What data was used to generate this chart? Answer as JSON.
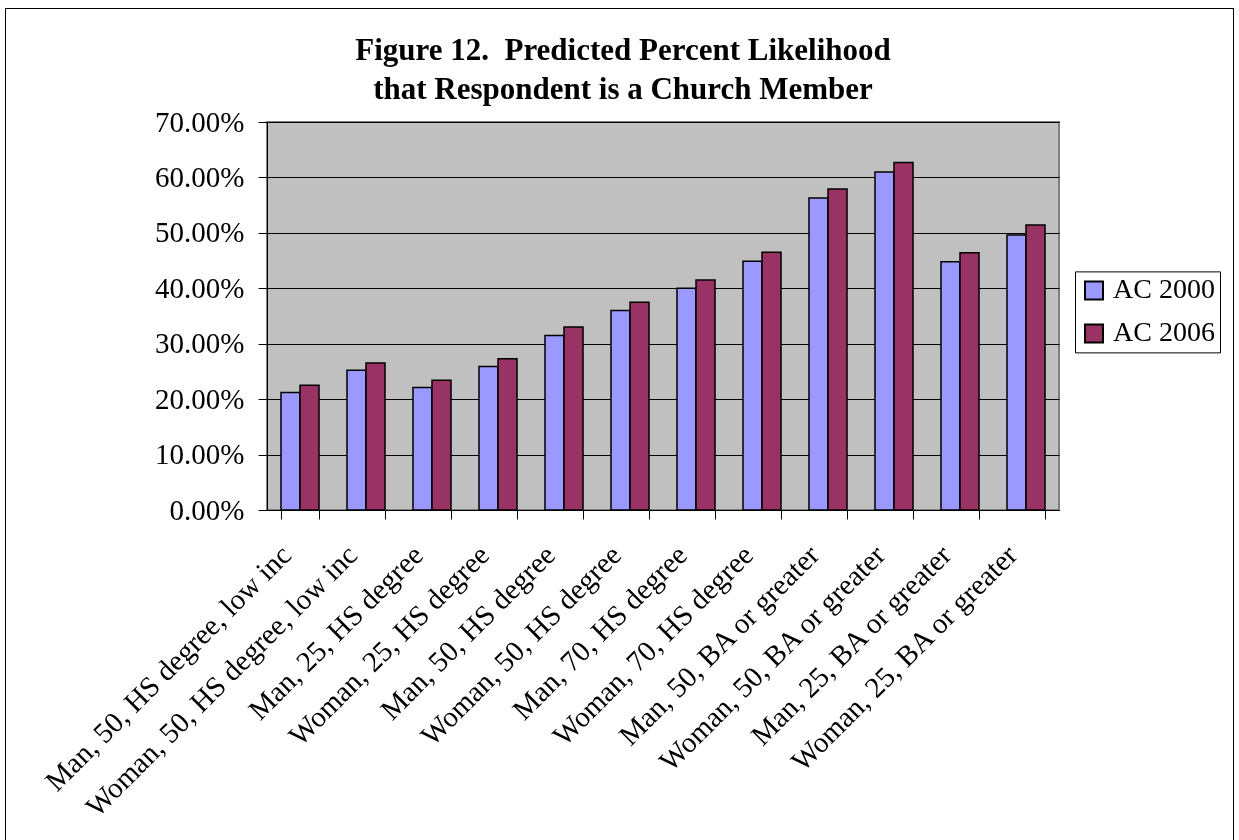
{
  "chart_data": {
    "type": "bar",
    "title": "Figure 12.  Predicted Percent Likelihood\nthat Respondent is a Church Member",
    "categories": [
      "Man, 50, HS degree, low inc",
      "Woman, 50, HS degree, low inc",
      "Man, 25, HS degree",
      "Woman, 25, HS degree",
      "Man, 50, HS degree",
      "Woman, 50, HS degree",
      "Man, 70, HS degree",
      "Woman, 70, HS degree",
      "Man, 50, BA or greater",
      "Woman, 50, BA or greater",
      "Man, 25, BA or greater",
      "Woman, 25, BA or greater"
    ],
    "series": [
      {
        "name": "AC 2000",
        "color": "#9999ff",
        "values": [
          21.2,
          25.2,
          22.1,
          25.9,
          31.5,
          36.0,
          40.0,
          44.9,
          56.3,
          61.0,
          44.8,
          49.6
        ]
      },
      {
        "name": "AC 2006",
        "color": "#993366",
        "values": [
          22.5,
          26.5,
          23.4,
          27.3,
          33.0,
          37.5,
          41.5,
          46.5,
          57.9,
          62.7,
          46.4,
          51.4
        ]
      }
    ],
    "ylim": [
      0,
      70
    ],
    "yticks": [
      {
        "value": 0,
        "label": "0.00%"
      },
      {
        "value": 10,
        "label": "10.00%"
      },
      {
        "value": 20,
        "label": "20.00%"
      },
      {
        "value": 30,
        "label": "30.00%"
      },
      {
        "value": 40,
        "label": "40.00%"
      },
      {
        "value": 50,
        "label": "50.00%"
      },
      {
        "value": 60,
        "label": "60.00%"
      },
      {
        "value": 70,
        "label": "70.00%"
      }
    ],
    "grid": "y",
    "legend": "right"
  }
}
